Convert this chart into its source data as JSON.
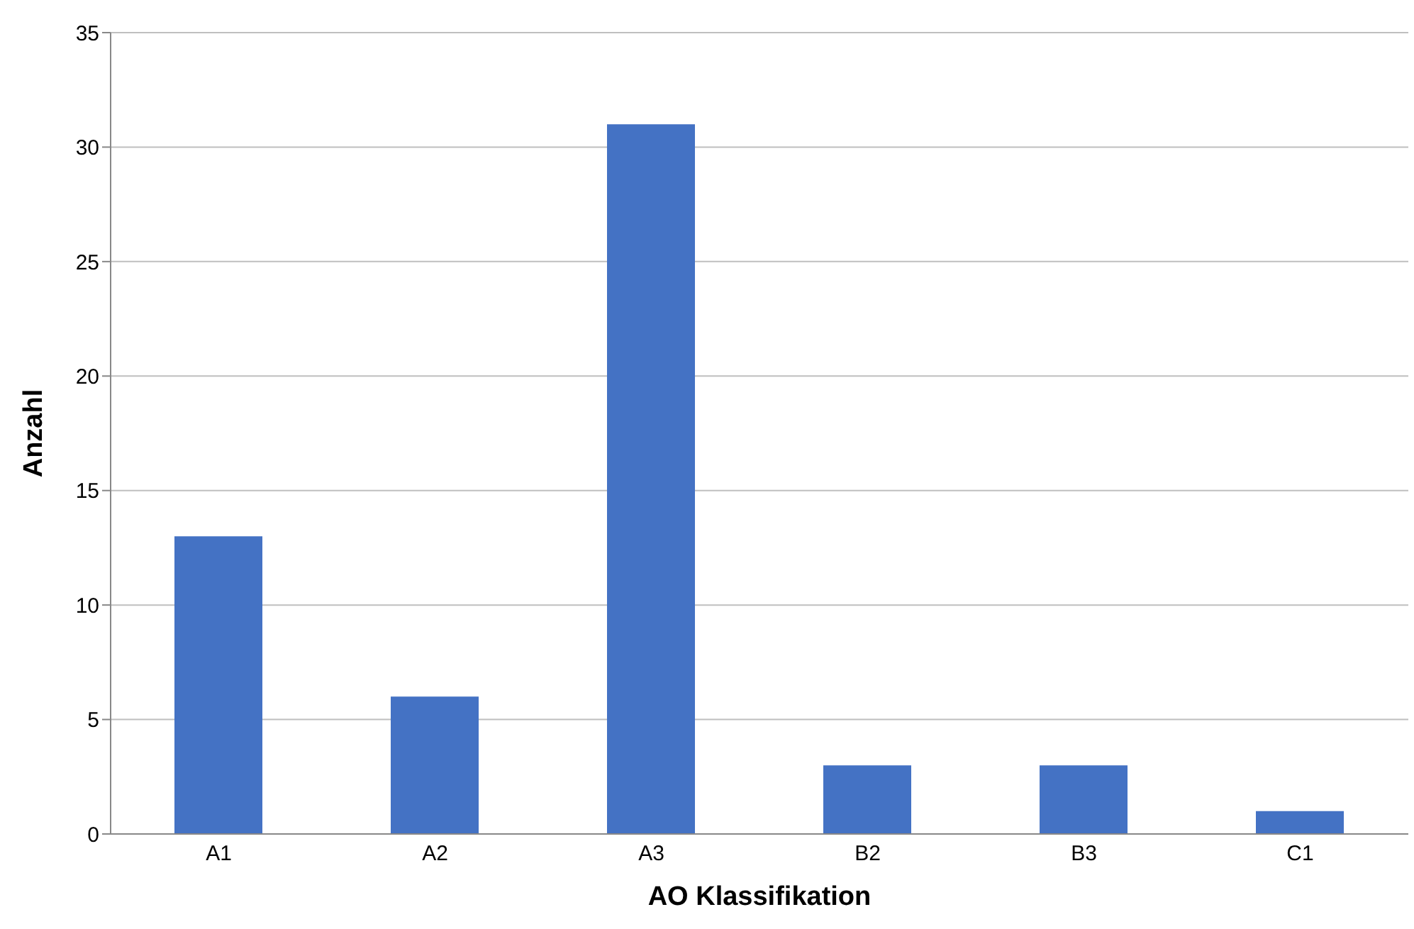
{
  "chart_data": {
    "type": "bar",
    "xlabel": "AO Klassifikation",
    "ylabel": "Anzahl",
    "categories": [
      "A1",
      "A2",
      "A3",
      "B2",
      "B3",
      "C1"
    ],
    "values": [
      13,
      6,
      31,
      3,
      3,
      1
    ],
    "color": "#4472c4",
    "ylim": [
      0,
      35
    ],
    "yticks": [
      0,
      5,
      10,
      15,
      20,
      25,
      30,
      35
    ],
    "grid": "y"
  }
}
